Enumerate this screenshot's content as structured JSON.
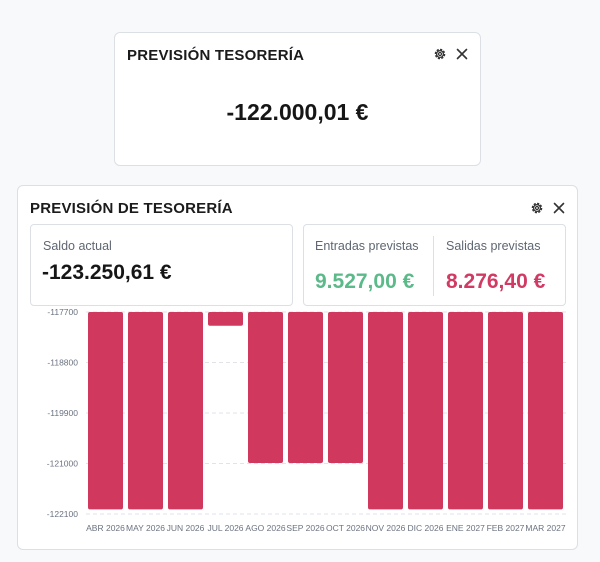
{
  "widget1": {
    "title": "PREVISIÓN TESORERÍA",
    "value": "-122.000,01 €",
    "settings_icon": "gear-icon",
    "close_icon": "close-icon"
  },
  "widget2": {
    "title": "PREVISIÓN DE TESORERÍA",
    "settings_icon": "gear-icon",
    "close_icon": "close-icon",
    "saldo_label": "Saldo actual",
    "saldo_value": "-123.250,61 €",
    "entradas_label": "Entradas previstas",
    "entradas_value": "9.527,00 €",
    "salidas_label": "Salidas previstas",
    "salidas_value": "8.276,40 €"
  },
  "colors": {
    "bar": "#d1385e",
    "positive": "#5cb989",
    "negative": "#d13a63"
  },
  "chart_data": {
    "type": "bar",
    "categories": [
      "ABR 2026",
      "MAY 2026",
      "JUN 2026",
      "JUL 2026",
      "AGO 2026",
      "SEP 2026",
      "OCT 2026",
      "NOV 2026",
      "DIC 2026",
      "ENE 2027",
      "FEB 2027",
      "MAR 2027"
    ],
    "values": [
      -122000,
      -122000,
      -122000,
      -118000,
      -120990,
      -120990,
      -120990,
      -122000,
      -122000,
      -122000,
      -122000,
      -122000
    ],
    "ylim": [
      -122100,
      -117700
    ],
    "yticks": [
      -117700,
      -118800,
      -119900,
      -121000,
      -122100
    ],
    "baseline": -117700,
    "grid": true
  }
}
